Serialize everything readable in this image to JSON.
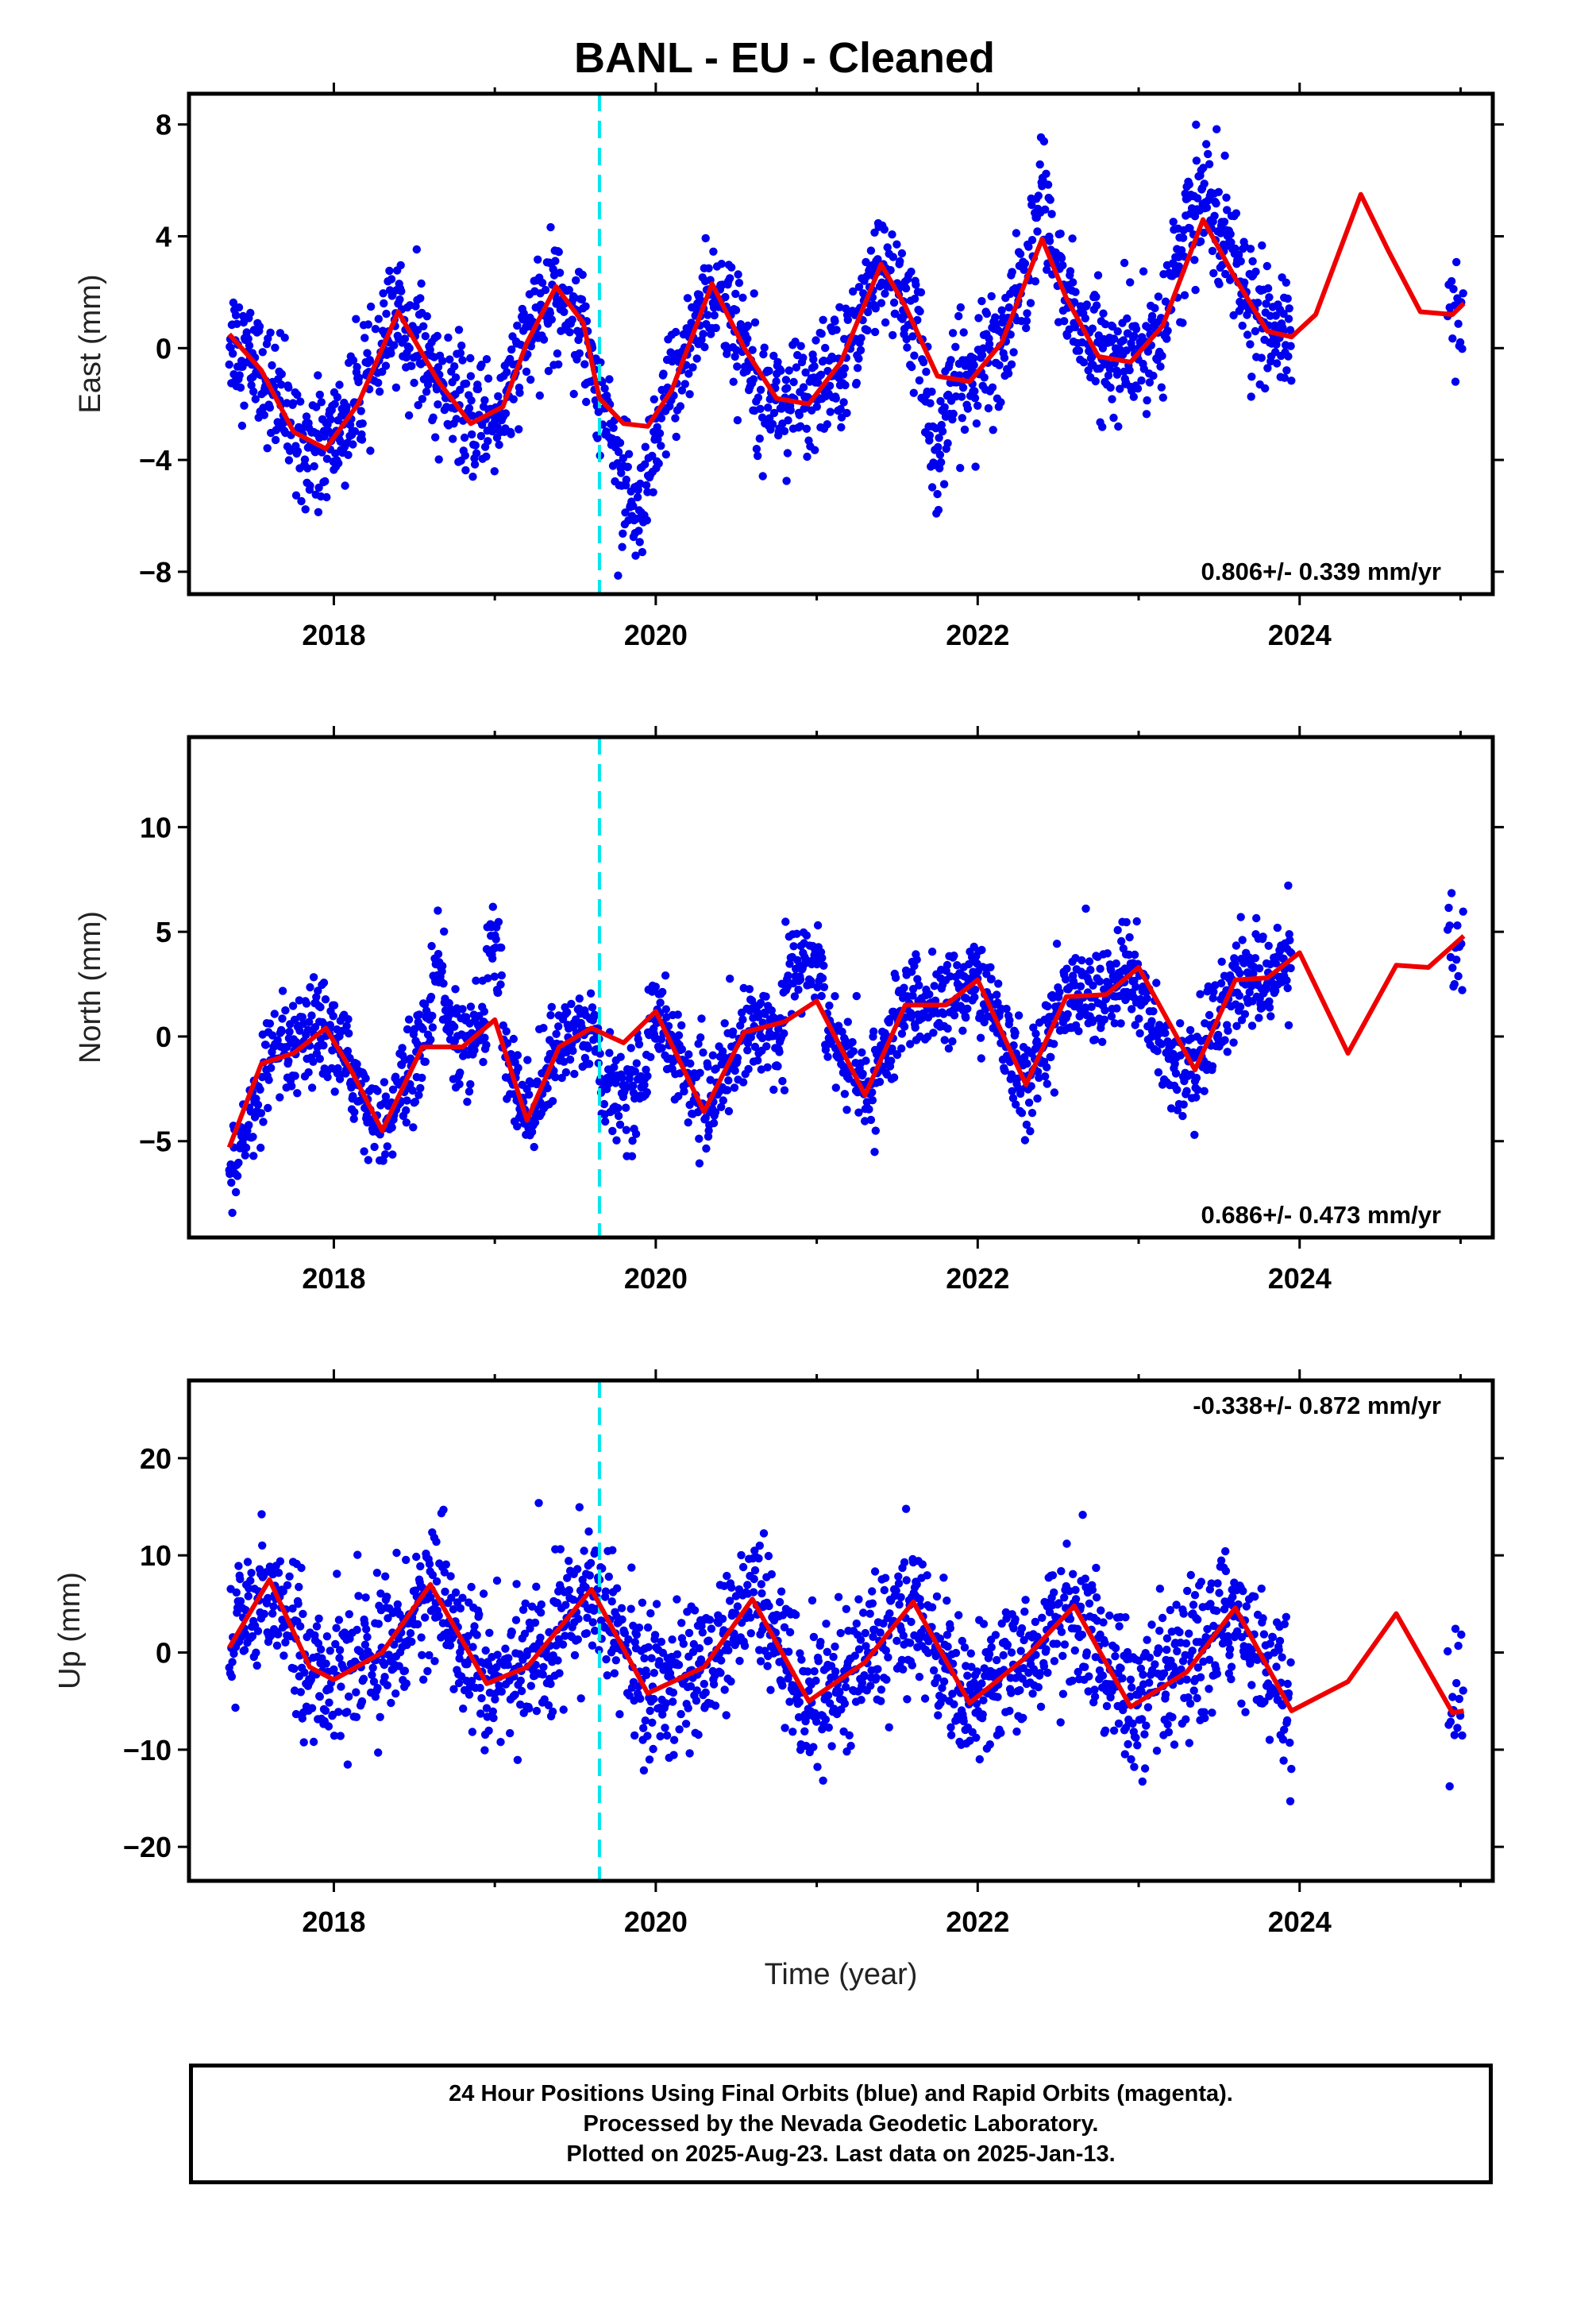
{
  "title": "BANL  - EU - Cleaned",
  "x_axis_label": "Time (year)",
  "footer": {
    "line1": "24 Hour Positions Using Final Orbits (blue) and Rapid Orbits (magenta).",
    "line2": "Processed by the Nevada Geodetic Laboratory.",
    "line3": "Plotted on 2025-Aug-23. Last data on 2025-Jan-13."
  },
  "colors": {
    "points": "#0000ee",
    "model": "#ee0000",
    "event_line": "#00e5ee",
    "frame": "#000000"
  },
  "chart_data": [
    {
      "type": "scatter",
      "component": "East",
      "ylabel": "East (mm)",
      "rate_text": "0.806+/- 0.339 mm/yr",
      "xlim": [
        2017.1,
        2025.2
      ],
      "ylim": [
        -8.8,
        9.1
      ],
      "xticks": [
        2018,
        2020,
        2022,
        2024
      ],
      "yticks": [
        -8,
        -4,
        0,
        4,
        8
      ],
      "ytick_labels": [
        "−8",
        "−4",
        "0",
        "4",
        "8"
      ],
      "event_line_x": 2019.65,
      "data_start": 2017.35,
      "data_end": 2023.95,
      "late_start": 2024.92,
      "late_end": 2025.02,
      "trend": {
        "t0": 2021.0,
        "a": 0.9,
        "slope": 0.806
      },
      "model": {
        "x": [
          2017.35,
          2017.55,
          2017.75,
          2017.95,
          2018.15,
          2018.4,
          2018.65,
          2018.85,
          2019.05,
          2019.2,
          2019.38,
          2019.55,
          2019.65,
          2019.8,
          2019.95,
          2020.1,
          2020.35,
          2020.55,
          2020.75,
          2020.95,
          2021.15,
          2021.4,
          2021.55,
          2021.75,
          2021.95,
          2022.15,
          2022.4,
          2022.55,
          2022.75,
          2022.95,
          2023.15,
          2023.4,
          2023.6,
          2023.8,
          2023.95,
          2024.1,
          2024.38,
          2024.55,
          2024.75,
          2024.95,
          2025.02
        ],
        "y": [
          0.5,
          -0.8,
          -3.0,
          -3.6,
          -2.0,
          1.3,
          -1.2,
          -2.7,
          -2.1,
          0.2,
          2.2,
          0.9,
          -1.8,
          -2.7,
          -2.8,
          -1.5,
          2.3,
          0.0,
          -1.8,
          -2.0,
          -0.5,
          3.0,
          1.5,
          -1.0,
          -1.2,
          0.2,
          3.9,
          1.8,
          -0.3,
          -0.5,
          0.8,
          4.6,
          2.5,
          0.6,
          0.4,
          1.2,
          5.5,
          3.5,
          1.3,
          1.2,
          1.6
        ]
      }
    },
    {
      "type": "scatter",
      "component": "North",
      "ylabel": "North (mm)",
      "rate_text": "0.686+/- 0.473 mm/yr",
      "xlim": [
        2017.1,
        2025.2
      ],
      "ylim": [
        -9.6,
        14.3
      ],
      "xticks": [
        2018,
        2020,
        2022,
        2024
      ],
      "yticks": [
        -5,
        0,
        5,
        10
      ],
      "ytick_labels": [
        "−5",
        "0",
        "5",
        "10"
      ],
      "event_line_x": 2019.65,
      "data_start": 2017.35,
      "data_end": 2023.95,
      "late_start": 2024.92,
      "late_end": 2025.02,
      "trend": {
        "t0": 2021.0,
        "a": 0.5,
        "slope": 0.686
      },
      "model": {
        "x": [
          2017.35,
          2017.55,
          2017.75,
          2017.95,
          2018.1,
          2018.3,
          2018.55,
          2018.8,
          2019.0,
          2019.2,
          2019.4,
          2019.6,
          2019.8,
          2020.0,
          2020.3,
          2020.55,
          2020.8,
          2021.0,
          2021.3,
          2021.55,
          2021.8,
          2022.0,
          2022.3,
          2022.55,
          2022.8,
          2023.0,
          2023.35,
          2023.6,
          2023.8,
          2024.0,
          2024.3,
          2024.6,
          2024.8,
          2025.02
        ],
        "y": [
          -5.3,
          -1.3,
          -0.8,
          0.4,
          -1.5,
          -4.5,
          -0.5,
          -0.5,
          0.8,
          -4.0,
          -0.5,
          0.4,
          -0.3,
          1.2,
          -3.6,
          0.2,
          0.7,
          1.7,
          -2.8,
          1.5,
          1.5,
          2.7,
          -2.3,
          1.9,
          2.0,
          3.3,
          -1.6,
          2.7,
          2.8,
          4.0,
          -0.8,
          3.4,
          3.3,
          4.8
        ]
      }
    },
    {
      "type": "scatter",
      "component": "Up",
      "ylabel": "Up (mm)",
      "rate_text": "-0.338+/- 0.872 mm/yr",
      "xlim": [
        2017.1,
        2025.2
      ],
      "ylim": [
        -23.5,
        28.0
      ],
      "xticks": [
        2018,
        2020,
        2022,
        2024
      ],
      "yticks": [
        -20,
        -10,
        0,
        10,
        20
      ],
      "ytick_labels": [
        "−20",
        "−10",
        "0",
        "10",
        "20"
      ],
      "event_line_x": 2019.65,
      "data_start": 2017.35,
      "data_end": 2023.95,
      "late_start": 2024.92,
      "late_end": 2025.02,
      "trend": {
        "t0": 2021.0,
        "a": 0.0,
        "slope": -0.338
      },
      "model": {
        "x": [
          2017.35,
          2017.6,
          2017.85,
          2018.0,
          2018.3,
          2018.6,
          2018.95,
          2019.2,
          2019.6,
          2019.95,
          2020.3,
          2020.6,
          2020.95,
          2021.3,
          2021.6,
          2021.95,
          2022.3,
          2022.6,
          2022.95,
          2023.3,
          2023.6,
          2023.95,
          2024.3,
          2024.6,
          2024.95,
          2025.02
        ],
        "y": [
          0.5,
          7.5,
          -1.5,
          -2.8,
          0.0,
          7.0,
          -3.2,
          -1.5,
          6.5,
          -4.2,
          -1.5,
          5.5,
          -5.0,
          -1.0,
          5.2,
          -5.2,
          -0.5,
          4.8,
          -5.6,
          -2.0,
          4.6,
          -6.0,
          -3.0,
          4.0,
          -6.2,
          -6.0
        ]
      }
    }
  ]
}
